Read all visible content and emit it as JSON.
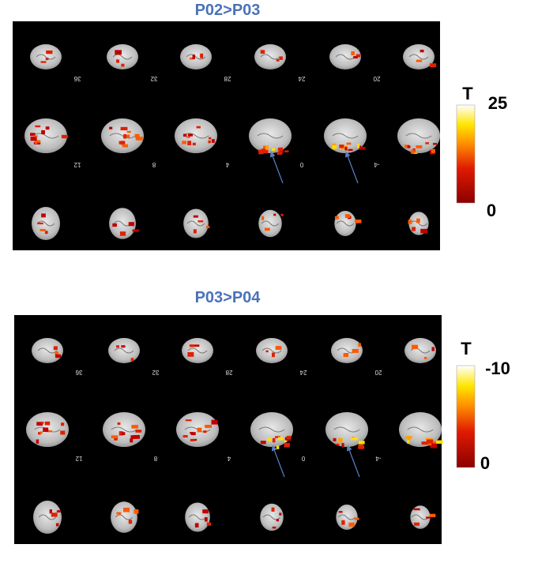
{
  "panels": [
    {
      "title": "P02>P03",
      "slice_labels": [
        [
          "36",
          "32",
          "28",
          "24",
          "20"
        ],
        [
          "12",
          "8",
          "4",
          "0",
          "-4"
        ]
      ],
      "colorbar": {
        "label": "T",
        "max": "25",
        "min": "0"
      }
    },
    {
      "title": "P03>P04",
      "slice_labels": [
        [
          "36",
          "32",
          "28",
          "24",
          "20"
        ],
        [
          "12",
          "8",
          "4",
          "0",
          "-4"
        ]
      ],
      "colorbar": {
        "label": "T",
        "max": "-10",
        "min": "0"
      }
    }
  ]
}
